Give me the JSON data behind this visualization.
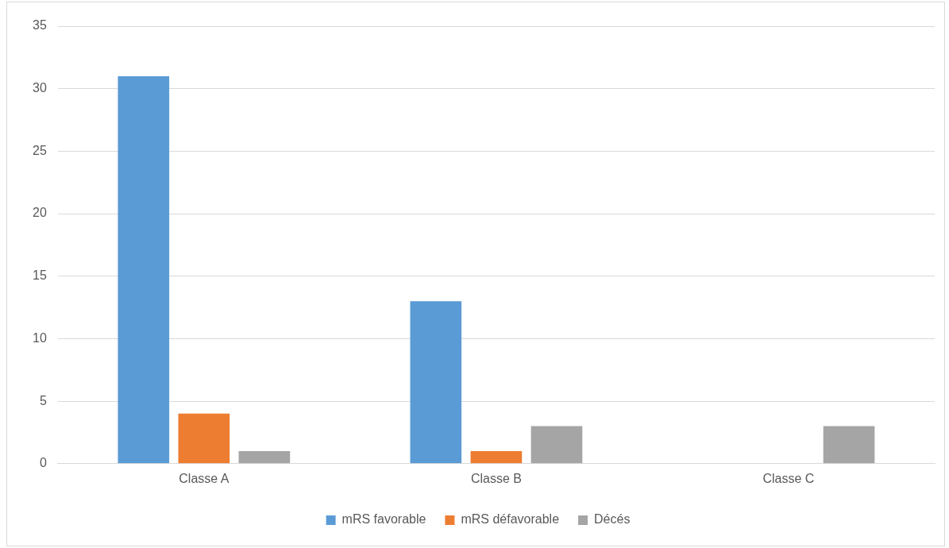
{
  "chart_data": {
    "type": "bar",
    "categories": [
      "Classe A",
      "Classe B",
      "Classe C"
    ],
    "series": [
      {
        "name": "mRS favorable",
        "color": "#5b9bd5",
        "values": [
          31,
          13,
          0
        ]
      },
      {
        "name": "mRS défavorable",
        "color": "#ed7d31",
        "values": [
          4,
          1,
          0
        ]
      },
      {
        "name": "Décés",
        "color": "#a5a5a5",
        "values": [
          1,
          3,
          3
        ]
      }
    ],
    "ylim": [
      0,
      35
    ],
    "yticks": [
      0,
      5,
      10,
      15,
      20,
      25,
      30,
      35
    ],
    "grid": "y",
    "legend": "bottom"
  }
}
